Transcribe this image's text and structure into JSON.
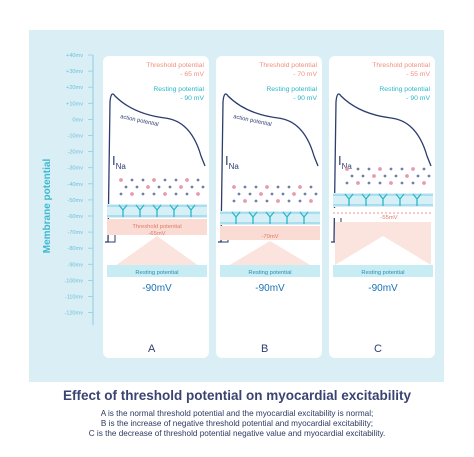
{
  "y_axis": {
    "label": "Membrane potential",
    "ticks": [
      "+40mv",
      "+30mv",
      "+20mv",
      "+10mv",
      "0mv",
      "-10mv",
      "-20mv",
      "-30mv",
      "-40mv",
      "-50mv",
      "-60mv",
      "-70mv",
      "-80mv",
      "-90mv",
      "-100mv",
      "-110mv",
      "-120mv"
    ]
  },
  "panels": [
    {
      "letter": "A",
      "threshold_label": "Threshold potential",
      "threshold_value": "- 65 mV",
      "resting_label": "Resting potential",
      "resting_value": "- 90 mV",
      "ap_label": "action potential",
      "ina_main": "I",
      "ina_sub": "Na",
      "threshold_band_label": "Threshold potential",
      "threshold_band_value": "-65mV",
      "resting_band_label": "Resting potential",
      "resting_big": "-90mV"
    },
    {
      "letter": "B",
      "threshold_label": "Threshold potential",
      "threshold_value": "- 70 mV",
      "resting_label": "Resting potential",
      "resting_value": "- 90 mV",
      "ap_label": "action potential",
      "ina_main": "I",
      "ina_sub": "Na",
      "threshold_band_label": "",
      "threshold_band_value": "-70mV",
      "resting_band_label": "Resting potential",
      "resting_big": "-90mV"
    },
    {
      "letter": "C",
      "threshold_label": "Threshold potential",
      "threshold_value": "- 55 mV",
      "resting_label": "Resting potential",
      "resting_value": "- 90 mV",
      "ap_label": "",
      "ina_main": "I",
      "ina_sub": "Na",
      "threshold_band_label": "",
      "threshold_band_value": "-55mV",
      "resting_band_label": "Resting potential",
      "resting_big": "-90mV"
    }
  ],
  "caption": {
    "title": "Effect of threshold potential on myocardial excitability",
    "line_a": "A is the normal threshold potential and the myocardial excitability is normal;",
    "line_b": "B is the increase of negative threshold potential and myocardial excitability;",
    "line_c": "C is the decrease of threshold potential negative value and myocardial excitability."
  },
  "colors": {
    "background": "#daeef5",
    "panel": "#ffffff",
    "threshold_text": "#f0907e",
    "resting_text": "#2bb6c9",
    "curve": "#2c3e6e",
    "axis_text": "#6fc1d8",
    "membrane": "#7fcde0",
    "threshold_band": "#fadcd4",
    "resting_band": "#c7ecf4"
  }
}
